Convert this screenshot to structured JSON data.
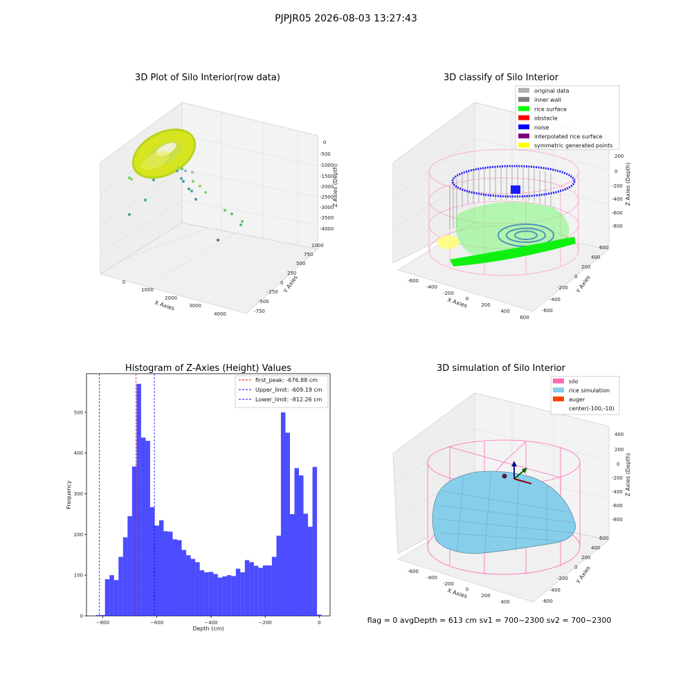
{
  "suptitle": "PJPJR05 2026-08-03 13:27:43",
  "panels": {
    "raw": {
      "title": "3D Plot of Silo Interior(row data)",
      "xlabel": "X Axies",
      "ylabel": "Y Axies",
      "zlabel": "Z Axies (Depth)",
      "xticks": [
        "0",
        "1000",
        "2000",
        "3000",
        "4000"
      ],
      "yticks": [
        "-750",
        "-500",
        "-250",
        "0",
        "250",
        "500",
        "750",
        "1000"
      ],
      "zticks": [
        "0",
        "-500",
        "-1000",
        "-1500",
        "-2000",
        "-2500",
        "-3000",
        "-3500",
        "-4000"
      ]
    },
    "classify": {
      "title": "3D classify of Silo Interior",
      "xlabel": "X Axies",
      "ylabel": "Y Axies",
      "zlabel": "Z Axies (Depth)",
      "xticks": [
        "-600",
        "-400",
        "-200",
        "0",
        "200",
        "400",
        "600"
      ],
      "yticks": [
        "-600",
        "-400",
        "-200",
        "0",
        "200",
        "400",
        "600"
      ],
      "zticks": [
        "200",
        "0",
        "-200",
        "-400",
        "-600",
        "-800"
      ],
      "legend": [
        {
          "label": "original data",
          "color": "#b0b0b0"
        },
        {
          "label": "inner wall",
          "color": "#808080"
        },
        {
          "label": "rice surface",
          "color": "#00ff00"
        },
        {
          "label": "obstacle",
          "color": "#ff0000"
        },
        {
          "label": "noise",
          "color": "#0000ff"
        },
        {
          "label": "interpolated rice surface",
          "color": "#800080"
        },
        {
          "label": "symmetric generated points",
          "color": "#ffff00"
        }
      ]
    },
    "simulation": {
      "title": "3D simulation of Silo Interior",
      "xlabel": "X Axies",
      "ylabel": "Y Axies",
      "zlabel": "Z Axies (Depth)",
      "xticks": [
        "-600",
        "-400",
        "-200",
        "0",
        "200",
        "400"
      ],
      "yticks": [
        "-600",
        "-400",
        "-200",
        "0",
        "200",
        "400",
        "600"
      ],
      "zticks": [
        "400",
        "200",
        "0",
        "-200",
        "-400",
        "-600",
        "-800"
      ],
      "legend": [
        {
          "label": "silo",
          "color": "#ff69b4"
        },
        {
          "label": "rice simulation",
          "color": "#87ceeb"
        },
        {
          "label": "auger",
          "color": "#ff4500"
        },
        {
          "label": "center(-100,-10)",
          "color": ""
        }
      ]
    },
    "footer": "flag = 0     avgDepth = 613 cm  sv1 = 700~2300  sv2 = 700~2300"
  },
  "chart_data": [
    {
      "type": "bar",
      "title": "Histogram of Z-Axies (Height) Values",
      "xlabel": "Depth (cm)",
      "ylabel": "Frequency",
      "xlim": [
        -860,
        40
      ],
      "ylim": [
        0,
        595
      ],
      "xticks": [
        -800,
        -600,
        -400,
        -200,
        0
      ],
      "yticks": [
        0,
        100,
        200,
        300,
        400,
        500
      ],
      "bar_color": "#0000ff",
      "bin_width": 16.7,
      "bin_starts": [
        -825,
        -808.3,
        -791.7,
        -775,
        -758.3,
        -741.7,
        -725,
        -708.3,
        -691.7,
        -675,
        -658.3,
        -641.7,
        -625,
        -608.3,
        -591.7,
        -575,
        -558.3,
        -541.7,
        -525,
        -508.3,
        -491.7,
        -475,
        -458.3,
        -441.7,
        -425,
        -408.3,
        -391.7,
        -375,
        -358.3,
        -341.7,
        -325,
        -308.3,
        -291.7,
        -275,
        -258.3,
        -241.7,
        -225,
        -208.3,
        -191.7,
        -175,
        -158.3,
        -141.7,
        -125,
        -108.3,
        -91.7,
        -75,
        -58.3,
        -41.7,
        -25,
        -8.3
      ],
      "values": [
        2,
        2,
        90,
        100,
        88,
        145,
        193,
        245,
        367,
        570,
        438,
        430,
        267,
        222,
        235,
        208,
        207,
        188,
        186,
        162,
        149,
        140,
        132,
        112,
        107,
        108,
        103,
        94,
        97,
        100,
        98,
        116,
        107,
        137,
        132,
        123,
        118,
        124,
        124,
        145,
        197,
        500,
        450,
        250,
        363,
        345,
        251,
        219,
        366,
        3
      ],
      "vlines": [
        {
          "name": "first_peak",
          "label": "first_peak: -676.88 cm",
          "x": -676.88,
          "color": "#ff0000"
        },
        {
          "name": "Upper_limit",
          "label": "Upper_limit: -609.19 cm",
          "x": -609.19,
          "color": "#0000ff"
        },
        {
          "name": "Lower_limit",
          "label": "Lower_limit: -812.26 cm",
          "x": -812.26,
          "color": "#0000ff"
        }
      ],
      "legend_position": "upper right"
    }
  ]
}
